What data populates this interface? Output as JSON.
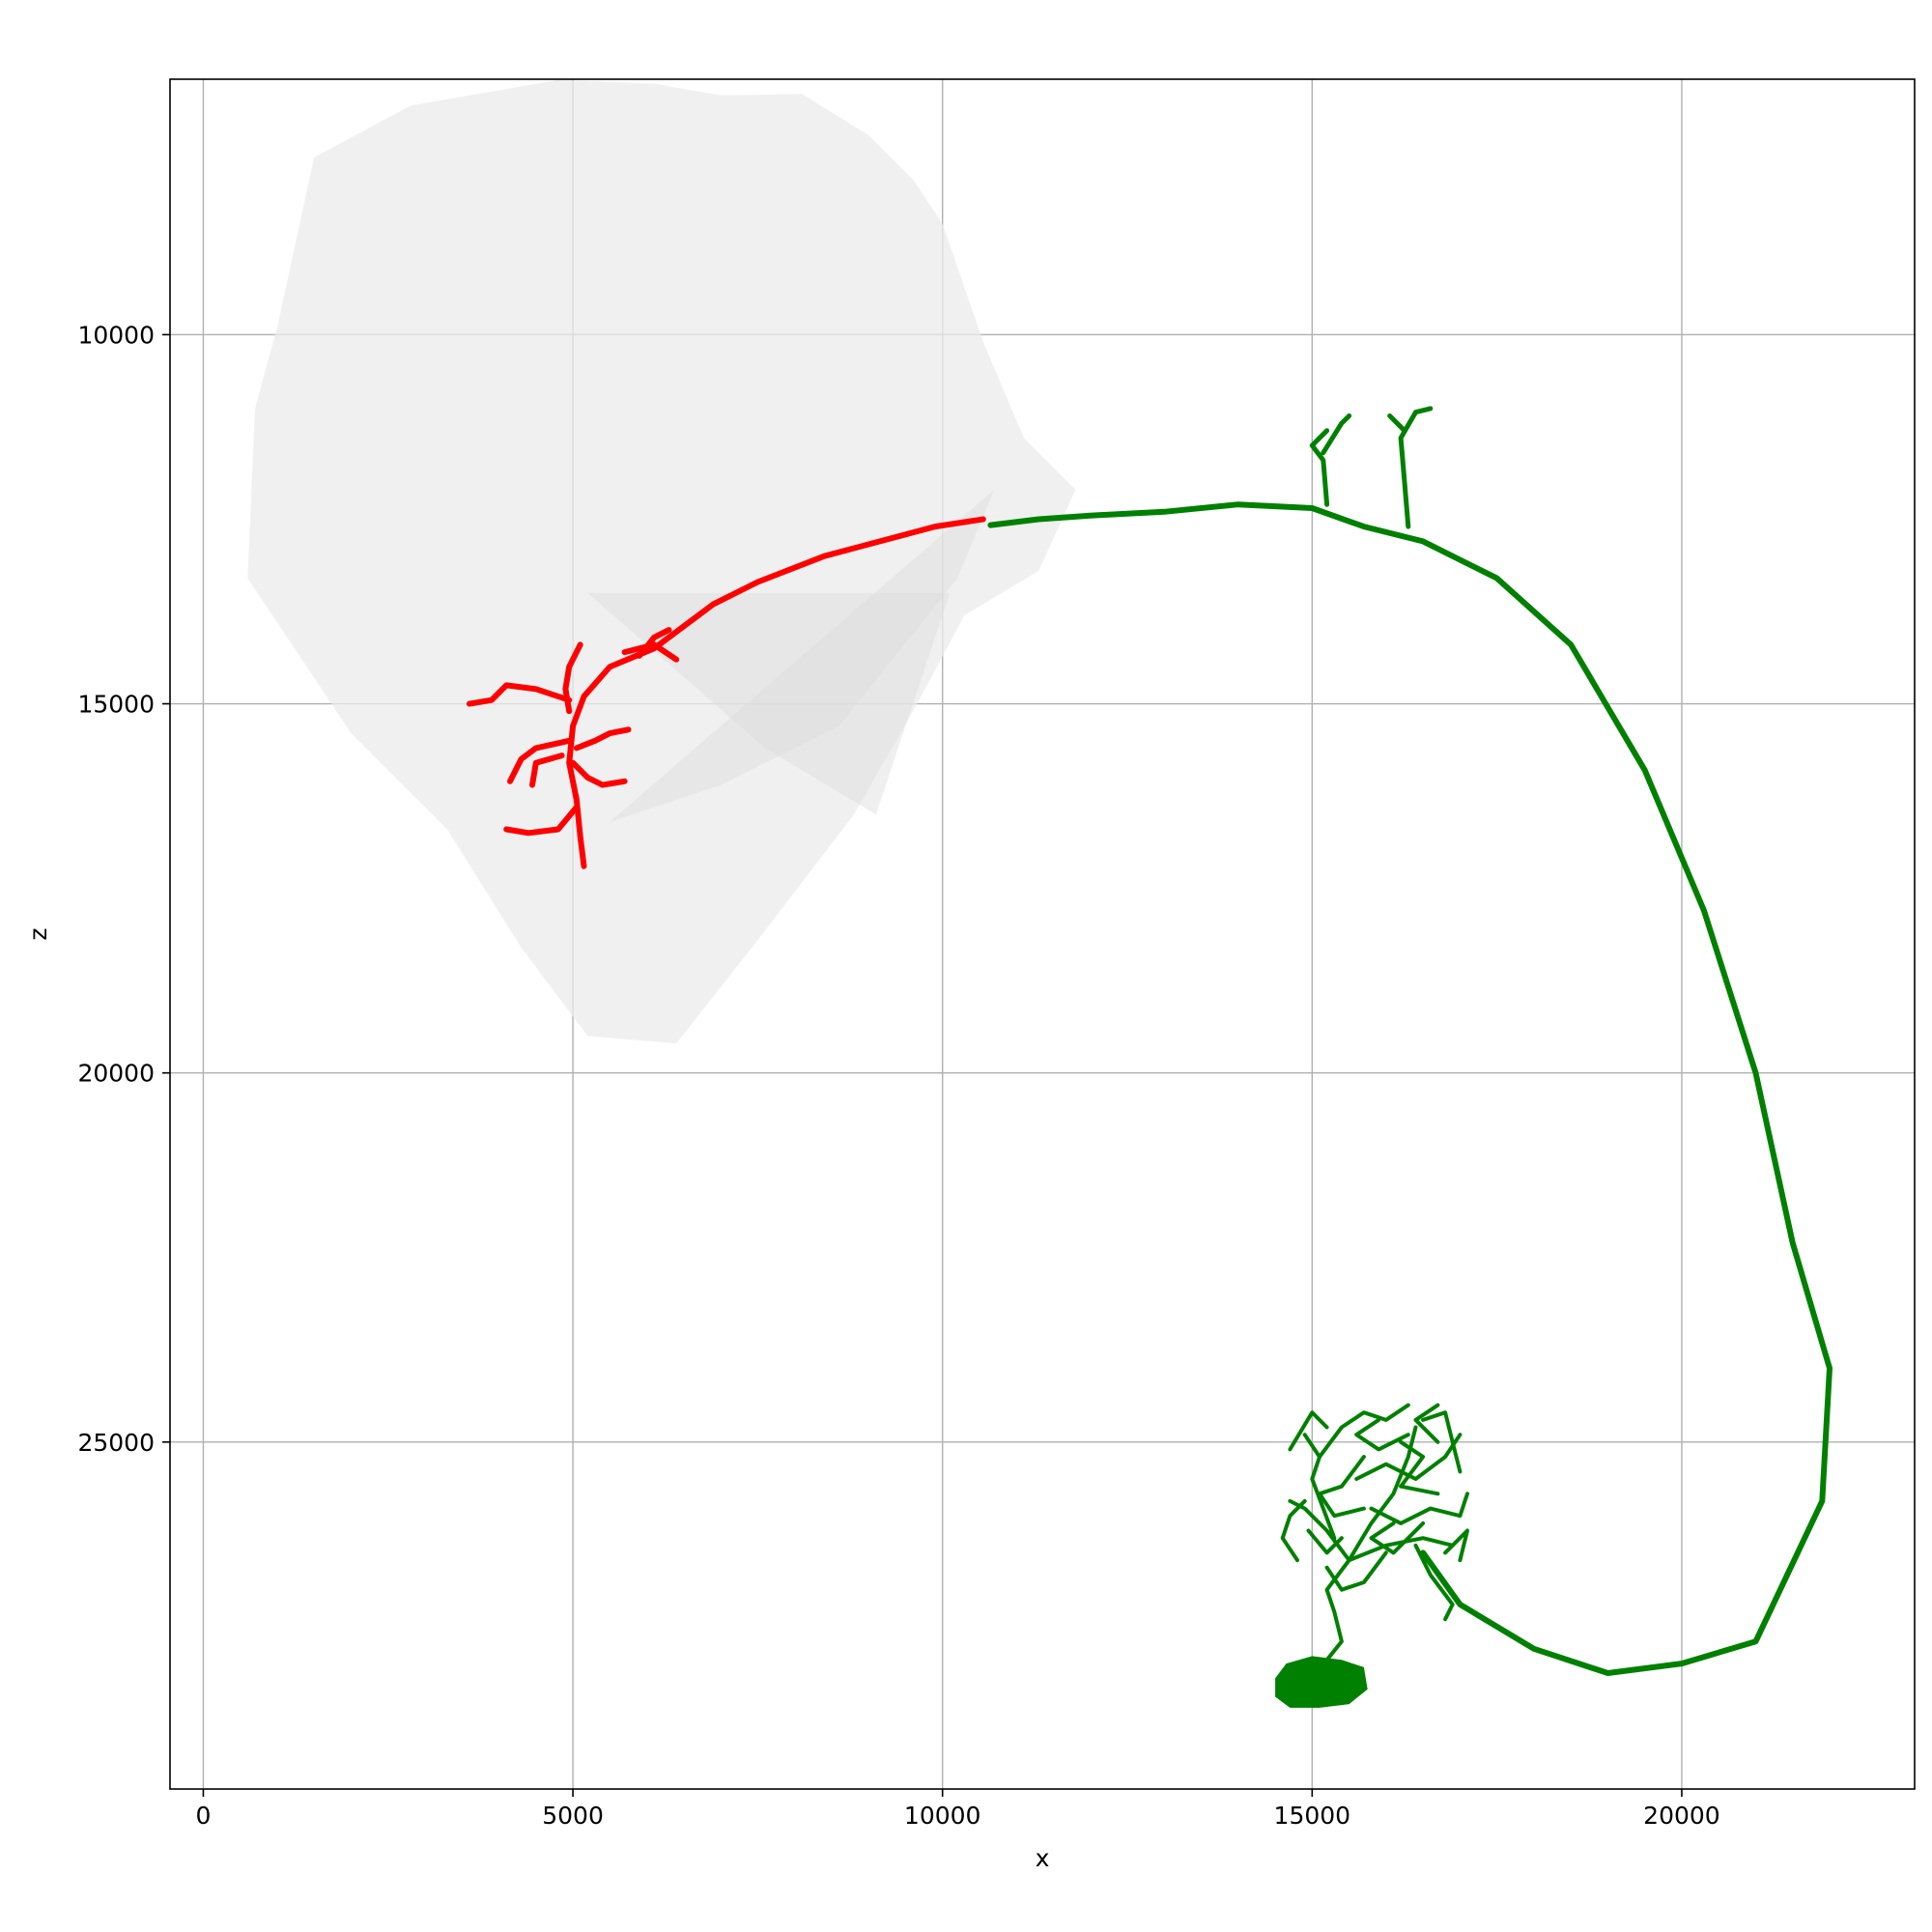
{
  "chart_data": {
    "type": "scatter",
    "title": "",
    "xlabel": "x",
    "ylabel": "z",
    "xlim": [
      -450,
      23150
    ],
    "ylim": [
      29700,
      6540
    ],
    "y_inverted": true,
    "grid": true,
    "xticks": [
      0,
      5000,
      10000,
      15000,
      20000
    ],
    "xtick_labels": [
      "0",
      "5000",
      "10000",
      "15000",
      "20000"
    ],
    "yticks": [
      10000,
      15000,
      20000,
      25000
    ],
    "ytick_labels": [
      "10000",
      "15000",
      "20000",
      "25000"
    ],
    "colors": {
      "mesh": "#ebebeb",
      "mesh_shade": "#dcdcdc",
      "dendrite": "#ff0000",
      "axon": "#008000",
      "grid": "#b0b0b0"
    },
    "mesh_outline": [
      [
        1500,
        7600
      ],
      [
        2800,
        6900
      ],
      [
        4800,
        6550
      ],
      [
        6100,
        6600
      ],
      [
        7000,
        6760
      ],
      [
        8100,
        6740
      ],
      [
        9000,
        7300
      ],
      [
        9600,
        7900
      ],
      [
        10000,
        8500
      ],
      [
        10550,
        10100
      ],
      [
        11100,
        11400
      ],
      [
        11800,
        12100
      ],
      [
        11300,
        13200
      ],
      [
        10300,
        13800
      ],
      [
        9600,
        15100
      ],
      [
        8800,
        16500
      ],
      [
        7500,
        18200
      ],
      [
        6400,
        19600
      ],
      [
        5200,
        19500
      ],
      [
        4300,
        18300
      ],
      [
        3300,
        16700
      ],
      [
        2000,
        15400
      ],
      [
        1200,
        14200
      ],
      [
        600,
        13300
      ],
      [
        700,
        11000
      ],
      [
        1000,
        9900
      ]
    ],
    "mesh_folds": [
      [
        [
          5200,
          13500
        ],
        [
          7600,
          15600
        ],
        [
          9100,
          16500
        ],
        [
          10100,
          13500
        ]
      ],
      [
        [
          5500,
          16600
        ],
        [
          7000,
          16100
        ],
        [
          8600,
          15300
        ],
        [
          10200,
          13300
        ],
        [
          10700,
          12100
        ]
      ]
    ],
    "dendrite_main": [
      [
        10550,
        12500
      ],
      [
        9900,
        12600
      ],
      [
        9300,
        12760
      ],
      [
        8400,
        13000
      ],
      [
        7500,
        13350
      ],
      [
        6900,
        13650
      ],
      [
        6100,
        14250
      ],
      [
        5500,
        14500
      ],
      [
        5150,
        14900
      ],
      [
        5000,
        15300
      ],
      [
        4950,
        15800
      ],
      [
        5050,
        16300
      ],
      [
        5100,
        16800
      ],
      [
        5150,
        17200
      ]
    ],
    "dendrite_branches": [
      [
        [
          5100,
          14200
        ],
        [
          4950,
          14500
        ],
        [
          4900,
          14800
        ],
        [
          4950,
          15100
        ]
      ],
      [
        [
          4950,
          14950
        ],
        [
          4500,
          14800
        ],
        [
          4100,
          14750
        ],
        [
          3900,
          14950
        ],
        [
          3600,
          15000
        ]
      ],
      [
        [
          4950,
          15500
        ],
        [
          4500,
          15600
        ],
        [
          4300,
          15750
        ],
        [
          4150,
          16050
        ]
      ],
      [
        [
          4850,
          15700
        ],
        [
          4500,
          15800
        ],
        [
          4450,
          16100
        ]
      ],
      [
        [
          5000,
          15800
        ],
        [
          5200,
          16000
        ],
        [
          5400,
          16100
        ],
        [
          5700,
          16050
        ]
      ],
      [
        [
          5050,
          15600
        ],
        [
          5300,
          15500
        ],
        [
          5500,
          15400
        ],
        [
          5750,
          15350
        ]
      ],
      [
        [
          5050,
          16400
        ],
        [
          4800,
          16700
        ],
        [
          4400,
          16750
        ],
        [
          4100,
          16700
        ]
      ],
      [
        [
          5700,
          14300
        ],
        [
          6100,
          14200
        ],
        [
          6400,
          14400
        ]
      ],
      [
        [
          5900,
          14350
        ],
        [
          6100,
          14100
        ],
        [
          6300,
          14000
        ]
      ]
    ],
    "axon_main": [
      [
        10650,
        12580
      ],
      [
        11300,
        12500
      ],
      [
        12000,
        12450
      ],
      [
        13000,
        12400
      ],
      [
        14000,
        12300
      ],
      [
        15000,
        12350
      ],
      [
        15700,
        12600
      ],
      [
        16500,
        12800
      ],
      [
        17500,
        13300
      ],
      [
        18500,
        14200
      ],
      [
        19500,
        15900
      ],
      [
        20300,
        17800
      ],
      [
        21000,
        20000
      ],
      [
        21500,
        22300
      ],
      [
        22000,
        24000
      ],
      [
        21900,
        25800
      ],
      [
        21000,
        27700
      ],
      [
        20000,
        28000
      ],
      [
        19000,
        28130
      ],
      [
        18000,
        27800
      ],
      [
        17000,
        27200
      ],
      [
        16500,
        26500
      ]
    ],
    "axon_collaterals": [
      [
        [
          15200,
          12300
        ],
        [
          15150,
          11700
        ],
        [
          15000,
          11500
        ],
        [
          15200,
          11300
        ]
      ],
      [
        [
          15150,
          11600
        ],
        [
          15400,
          11200
        ],
        [
          15500,
          11100
        ]
      ],
      [
        [
          16300,
          12600
        ],
        [
          16250,
          12000
        ],
        [
          16200,
          11400
        ],
        [
          16400,
          11050
        ],
        [
          16600,
          11000
        ]
      ],
      [
        [
          16250,
          11300
        ],
        [
          16050,
          11100
        ]
      ]
    ],
    "axon_arbor_segments": [
      [
        [
          15000,
          28200
        ],
        [
          15400,
          27700
        ],
        [
          15300,
          27300
        ],
        [
          15200,
          27000
        ],
        [
          15500,
          26600
        ]
      ],
      [
        [
          15500,
          26600
        ],
        [
          15200,
          26200
        ],
        [
          14900,
          25900
        ],
        [
          14700,
          25800
        ]
      ],
      [
        [
          15500,
          26600
        ],
        [
          15800,
          26100
        ],
        [
          16100,
          25700
        ],
        [
          16300,
          25200
        ],
        [
          16400,
          24800
        ]
      ],
      [
        [
          15500,
          26600
        ],
        [
          16000,
          26400
        ],
        [
          16500,
          26300
        ],
        [
          16900,
          26400
        ]
      ],
      [
        [
          15300,
          26300
        ],
        [
          15000,
          25500
        ],
        [
          15100,
          25200
        ],
        [
          14900,
          24900
        ]
      ],
      [
        [
          15100,
          25200
        ],
        [
          15400,
          24800
        ],
        [
          15700,
          24600
        ],
        [
          16000,
          24700
        ],
        [
          16300,
          24500
        ]
      ],
      [
        [
          15600,
          25500
        ],
        [
          16000,
          25300
        ],
        [
          16400,
          25500
        ],
        [
          16800,
          25200
        ],
        [
          17000,
          24900
        ]
      ],
      [
        [
          15800,
          25900
        ],
        [
          16200,
          26100
        ],
        [
          16600,
          25900
        ],
        [
          17000,
          26000
        ],
        [
          17100,
          25700
        ]
      ],
      [
        [
          16400,
          26400
        ],
        [
          16600,
          26800
        ],
        [
          16900,
          27200
        ],
        [
          16800,
          27400
        ]
      ],
      [
        [
          16000,
          26500
        ],
        [
          15700,
          26900
        ],
        [
          15400,
          27000
        ],
        [
          15200,
          26700
        ]
      ],
      [
        [
          14900,
          25800
        ],
        [
          14700,
          26000
        ],
        [
          14600,
          26300
        ],
        [
          14800,
          26600
        ]
      ],
      [
        [
          16500,
          24700
        ],
        [
          16800,
          24600
        ],
        [
          16900,
          25000
        ],
        [
          17000,
          25400
        ]
      ],
      [
        [
          15200,
          24800
        ],
        [
          15000,
          24600
        ],
        [
          14700,
          25100
        ]
      ],
      [
        [
          15700,
          25200
        ],
        [
          15400,
          25600
        ],
        [
          15100,
          25700
        ],
        [
          15300,
          26000
        ],
        [
          15700,
          25900
        ]
      ],
      [
        [
          16200,
          25000
        ],
        [
          16500,
          25200
        ],
        [
          16200,
          25600
        ],
        [
          16700,
          25700
        ]
      ],
      [
        [
          15900,
          24700
        ],
        [
          15600,
          24900
        ],
        [
          15900,
          25100
        ],
        [
          16300,
          24900
        ]
      ],
      [
        [
          16100,
          26100
        ],
        [
          15800,
          26300
        ],
        [
          16100,
          26500
        ],
        [
          16500,
          26100
        ]
      ],
      [
        [
          16800,
          26500
        ],
        [
          17100,
          26200
        ],
        [
          17000,
          26600
        ]
      ],
      [
        [
          15400,
          26300
        ],
        [
          15200,
          26500
        ],
        [
          14950,
          26200
        ]
      ],
      [
        [
          16700,
          25000
        ],
        [
          16400,
          24700
        ],
        [
          16700,
          24500
        ]
      ]
    ],
    "axon_soma": [
      [
        14500,
        28200
      ],
      [
        14650,
        28000
      ],
      [
        15000,
        27900
      ],
      [
        15400,
        27950
      ],
      [
        15700,
        28050
      ],
      [
        15750,
        28350
      ],
      [
        15500,
        28550
      ],
      [
        15100,
        28600
      ],
      [
        14700,
        28600
      ],
      [
        14500,
        28450
      ]
    ]
  }
}
